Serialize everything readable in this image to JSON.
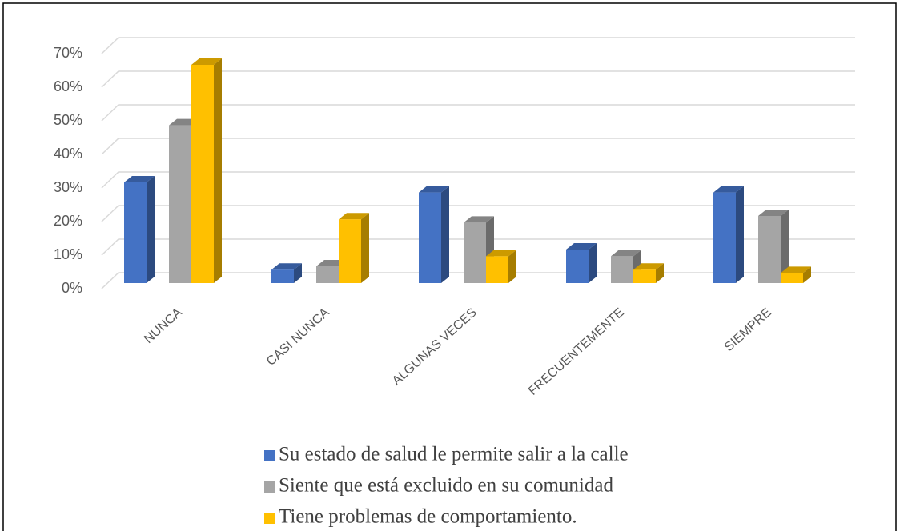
{
  "chart_data": {
    "type": "bar3d",
    "categories": [
      "NUNCA",
      "CASI NUNCA",
      "ALGUNAS VECES",
      "FRECUENTEMENTE",
      "SIEMPRE"
    ],
    "series": [
      {
        "name": "Su estado de salud le permite salir a la calle",
        "color": "#4472c4",
        "values": [
          30,
          4,
          27,
          10,
          27
        ]
      },
      {
        "name": "Siente que está excluido en su comunidad",
        "color": "#a5a5a5",
        "values": [
          47,
          5,
          18,
          8,
          20
        ]
      },
      {
        "name": "Tiene problemas de comportamiento.",
        "color": "#ffc000",
        "values": [
          65,
          19,
          8,
          4,
          3
        ]
      }
    ],
    "ylim": [
      0,
      70
    ],
    "yticks": [
      {
        "value": 0,
        "label": "0%"
      },
      {
        "value": 10,
        "label": "10%"
      },
      {
        "value": 20,
        "label": "20%"
      },
      {
        "value": 30,
        "label": "30%"
      },
      {
        "value": 40,
        "label": "40%"
      },
      {
        "value": 50,
        "label": "50%"
      },
      {
        "value": 60,
        "label": "60%"
      },
      {
        "value": 70,
        "label": "70%"
      }
    ],
    "grid": true,
    "legend": "bottom"
  }
}
